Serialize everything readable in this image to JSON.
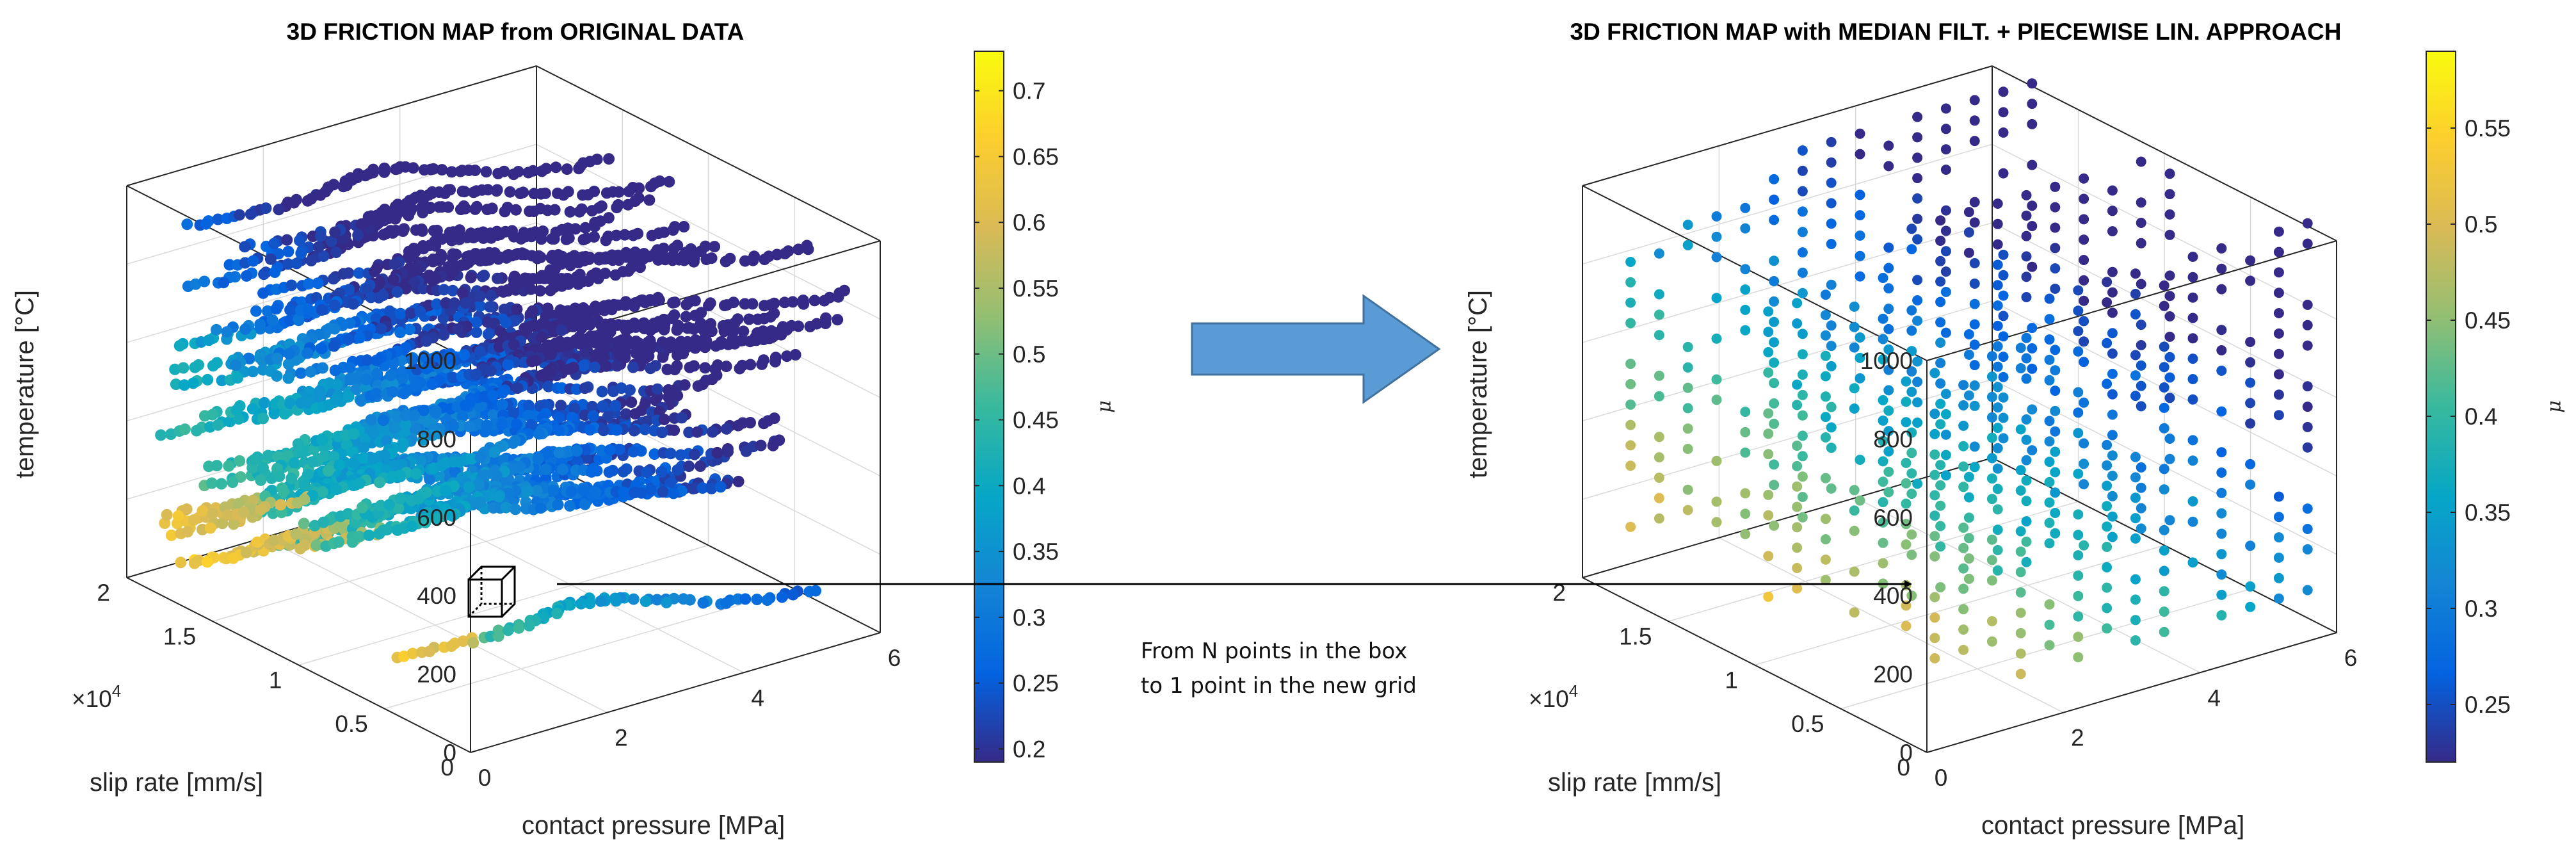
{
  "chart_data": [
    {
      "type": "scatter3d",
      "title": "3D FRICTION MAP from ORIGINAL DATA",
      "xlabel": "contact pressure [MPa]",
      "ylabel": "slip rate [mm/s]",
      "zlabel": "temperature [°C]",
      "y_exponent": "×10",
      "y_exponent_power": "4",
      "x_ticks": [
        "0",
        "2",
        "4",
        "6"
      ],
      "y_ticks": [
        "0",
        "0.5",
        "1",
        "1.5",
        "2"
      ],
      "z_ticks": [
        "0",
        "200",
        "400",
        "600",
        "800",
        "1000"
      ],
      "xlim": [
        0,
        6
      ],
      "ylim": [
        0,
        20000
      ],
      "zlim": [
        0,
        1000
      ],
      "colorbar_label": "μ",
      "colorbar_ticks": [
        "0.2",
        "0.25",
        "0.3",
        "0.35",
        "0.4",
        "0.45",
        "0.5",
        "0.55",
        "0.6",
        "0.65",
        "0.7"
      ],
      "colorbar_range": [
        0.19,
        0.73
      ],
      "points_description": "dense curved bands of measurement points; higher μ (0.45–0.7) at low pressure/low temperature, decreasing toward 0.2–0.35 at higher temperature and pressure"
    },
    {
      "type": "scatter3d",
      "title": "3D FRICTION MAP with MEDIAN FILT. + PIECEWISE LIN. APPROACH",
      "xlabel": "contact pressure [MPa]",
      "ylabel": "slip rate [mm/s]",
      "zlabel": "temperature [°C]",
      "y_exponent": "×10",
      "y_exponent_power": "4",
      "x_ticks": [
        "0",
        "2",
        "4",
        "6"
      ],
      "y_ticks": [
        "0",
        "0.5",
        "1",
        "1.5",
        "2"
      ],
      "z_ticks": [
        "0",
        "200",
        "400",
        "600",
        "800",
        "1000"
      ],
      "xlim": [
        0,
        6
      ],
      "ylim": [
        0,
        20000
      ],
      "zlim": [
        0,
        1000
      ],
      "colorbar_label": "μ",
      "colorbar_ticks": [
        "0.25",
        "0.3",
        "0.35",
        "0.4",
        "0.45",
        "0.5",
        "0.55"
      ],
      "colorbar_range": [
        0.22,
        0.59
      ],
      "points_description": "regular grid of points after median filtering; highest μ (~0.55) at low pressure, low temperature; lowest (~0.25) at high temperature"
    }
  ],
  "annotation": {
    "line1": "From  N points in the box",
    "line2": "to 1 point in the new grid"
  },
  "colors": {
    "arrow_fill": "#5b9bd5",
    "arrow_stroke": "#41719c",
    "axis": "#262626",
    "grid": "#d9d9d9"
  }
}
